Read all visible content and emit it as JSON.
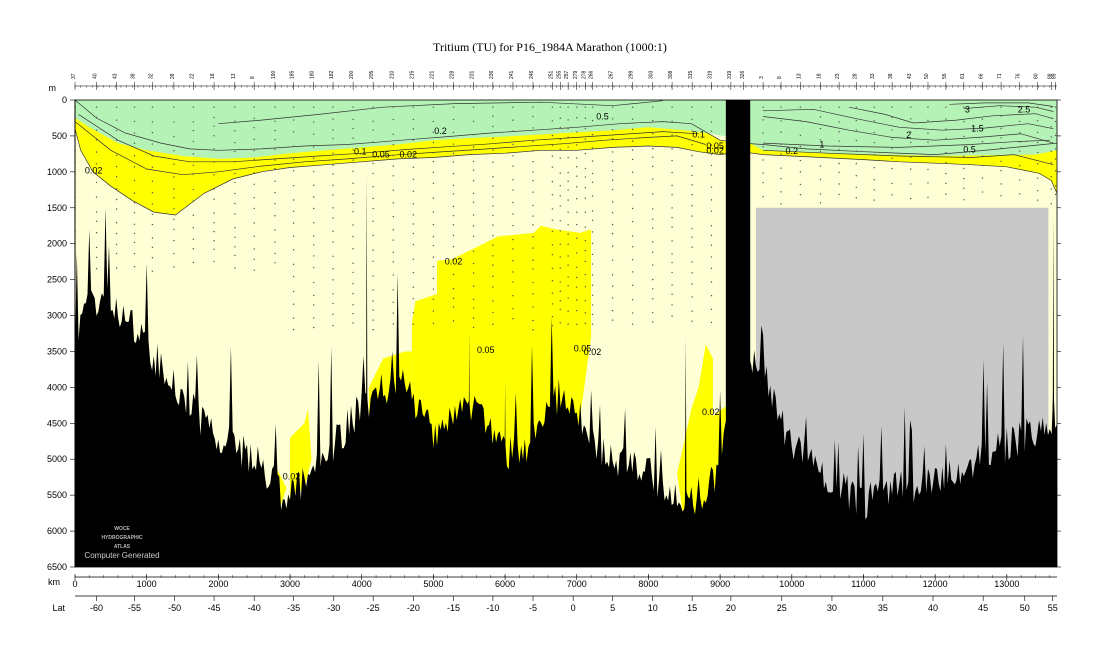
{
  "chart_data": {
    "type": "area",
    "title": "Tritium (TU) for P16_1984A Marathon (1000:1)",
    "y_unit_label": "m",
    "x_unit_label": "km",
    "lat_label": "Lat",
    "ylim": [
      0,
      6500
    ],
    "y_ticks": [
      0,
      500,
      1000,
      1500,
      2000,
      2500,
      3000,
      3500,
      4000,
      4500,
      5000,
      5500,
      6000,
      6500
    ],
    "xlim": [
      0,
      13700
    ],
    "x_ticks": [
      0,
      1000,
      2000,
      3000,
      4000,
      5000,
      6000,
      7000,
      8000,
      9000,
      10000,
      11000,
      12000,
      13000
    ],
    "lat_ticks": [
      {
        "km": 300,
        "lat": "-60"
      },
      {
        "km": 830,
        "lat": "-55"
      },
      {
        "km": 1390,
        "lat": "-50"
      },
      {
        "km": 1940,
        "lat": "-45"
      },
      {
        "km": 2500,
        "lat": "-40"
      },
      {
        "km": 3050,
        "lat": "-35"
      },
      {
        "km": 3610,
        "lat": "-30"
      },
      {
        "km": 4160,
        "lat": "-25"
      },
      {
        "km": 4720,
        "lat": "-20"
      },
      {
        "km": 5280,
        "lat": "-15"
      },
      {
        "km": 5830,
        "lat": "-10"
      },
      {
        "km": 6390,
        "lat": "-5"
      },
      {
        "km": 6950,
        "lat": "0"
      },
      {
        "km": 7500,
        "lat": "5"
      },
      {
        "km": 8060,
        "lat": "10"
      },
      {
        "km": 8610,
        "lat": "15"
      },
      {
        "km": 9150,
        "lat": "20"
      },
      {
        "km": 9860,
        "lat": "25"
      },
      {
        "km": 10560,
        "lat": "30"
      },
      {
        "km": 11270,
        "lat": "35"
      },
      {
        "km": 11970,
        "lat": "40"
      },
      {
        "km": 12670,
        "lat": "45"
      },
      {
        "km": 13250,
        "lat": "50"
      },
      {
        "km": 13640,
        "lat": "55"
      }
    ],
    "station_ticks": [
      {
        "km": 0,
        "label": "37"
      },
      {
        "km": 300,
        "label": "40"
      },
      {
        "km": 580,
        "label": "43"
      },
      {
        "km": 830,
        "label": "38"
      },
      {
        "km": 1080,
        "label": "32"
      },
      {
        "km": 1380,
        "label": "28"
      },
      {
        "km": 1650,
        "label": "22"
      },
      {
        "km": 1940,
        "label": "18"
      },
      {
        "km": 2230,
        "label": "13"
      },
      {
        "km": 2500,
        "label": "8"
      },
      {
        "km": 2790,
        "label": "190"
      },
      {
        "km": 3050,
        "label": "185"
      },
      {
        "km": 3330,
        "label": "180"
      },
      {
        "km": 3600,
        "label": "182"
      },
      {
        "km": 3880,
        "label": "200"
      },
      {
        "km": 4160,
        "label": "205"
      },
      {
        "km": 4440,
        "label": "210"
      },
      {
        "km": 4720,
        "label": "215"
      },
      {
        "km": 5000,
        "label": "221"
      },
      {
        "km": 5280,
        "label": "228"
      },
      {
        "km": 5560,
        "label": "231"
      },
      {
        "km": 5830,
        "label": "236"
      },
      {
        "km": 6110,
        "label": "241"
      },
      {
        "km": 6390,
        "label": "246"
      },
      {
        "km": 6660,
        "label": "251"
      },
      {
        "km": 6770,
        "label": "255"
      },
      {
        "km": 6880,
        "label": "257"
      },
      {
        "km": 7000,
        "label": "279"
      },
      {
        "km": 7120,
        "label": "278"
      },
      {
        "km": 7220,
        "label": "266"
      },
      {
        "km": 7500,
        "label": "267"
      },
      {
        "km": 7780,
        "label": "299"
      },
      {
        "km": 8060,
        "label": "303"
      },
      {
        "km": 8330,
        "label": "308"
      },
      {
        "km": 8610,
        "label": "315"
      },
      {
        "km": 8880,
        "label": "319"
      },
      {
        "km": 9150,
        "label": "319"
      },
      {
        "km": 9330,
        "label": "326"
      },
      {
        "km": 9600,
        "label": "3"
      },
      {
        "km": 9850,
        "label": "8"
      },
      {
        "km": 10120,
        "label": "13"
      },
      {
        "km": 10400,
        "label": "18"
      },
      {
        "km": 10660,
        "label": "23"
      },
      {
        "km": 10900,
        "label": "28"
      },
      {
        "km": 11150,
        "label": "33"
      },
      {
        "km": 11400,
        "label": "38"
      },
      {
        "km": 11660,
        "label": "43"
      },
      {
        "km": 11900,
        "label": "50"
      },
      {
        "km": 12150,
        "label": "55"
      },
      {
        "km": 12400,
        "label": "61"
      },
      {
        "km": 12660,
        "label": "66"
      },
      {
        "km": 12920,
        "label": "71"
      },
      {
        "km": 13180,
        "label": "76"
      },
      {
        "km": 13430,
        "label": "80"
      },
      {
        "km": 13620,
        "label": "88"
      },
      {
        "km": 13680,
        "label": "89"
      }
    ],
    "contour_levels": [
      0.02,
      0.05,
      0.1,
      0.2,
      0.5,
      1,
      1.5,
      2,
      2.5,
      3
    ],
    "contour_labels": [
      {
        "text": "0.02",
        "km": 260,
        "depth": 980
      },
      {
        "text": "0.1",
        "km": 3980,
        "depth": 720
      },
      {
        "text": "0.05",
        "km": 4270,
        "depth": 760
      },
      {
        "text": "0.02",
        "km": 4650,
        "depth": 760
      },
      {
        "text": "0.2",
        "km": 5100,
        "depth": 430
      },
      {
        "text": "0.5",
        "km": 7360,
        "depth": 230
      },
      {
        "text": "0.1",
        "km": 8700,
        "depth": 480
      },
      {
        "text": "0.05",
        "km": 8930,
        "depth": 640
      },
      {
        "text": "0.02",
        "km": 8930,
        "depth": 700
      },
      {
        "text": "0.2",
        "km": 10000,
        "depth": 710
      },
      {
        "text": "1",
        "km": 10420,
        "depth": 620
      },
      {
        "text": "0.5",
        "km": 12480,
        "depth": 690
      },
      {
        "text": "2",
        "km": 11630,
        "depth": 490
      },
      {
        "text": "1.5",
        "km": 12590,
        "depth": 400
      },
      {
        "text": "3",
        "km": 12450,
        "depth": 130
      },
      {
        "text": "2.5",
        "km": 13240,
        "depth": 130
      },
      {
        "text": "0.02",
        "km": 5280,
        "depth": 2250
      },
      {
        "text": "0.05",
        "km": 5730,
        "depth": 3480
      },
      {
        "text": "0.05",
        "km": 7080,
        "depth": 3460
      },
      {
        "text": "0.02",
        "km": 7220,
        "depth": 3510
      },
      {
        "text": "0.02",
        "km": 8870,
        "depth": 4340
      },
      {
        "text": "0.02",
        "km": 3020,
        "depth": 5240
      }
    ],
    "watermark_lines": [
      "WOCE",
      "HYDROGRAPHIC",
      "ATLAS"
    ],
    "watermark_caption": "Computer Generated",
    "colors": {
      "high_tritium": "#b5f2b5",
      "mid_tritium": "#ffff00",
      "low_tritium": "#ffffd5",
      "no_data": "#c8c8c8",
      "bathymetry": "#000000"
    }
  }
}
